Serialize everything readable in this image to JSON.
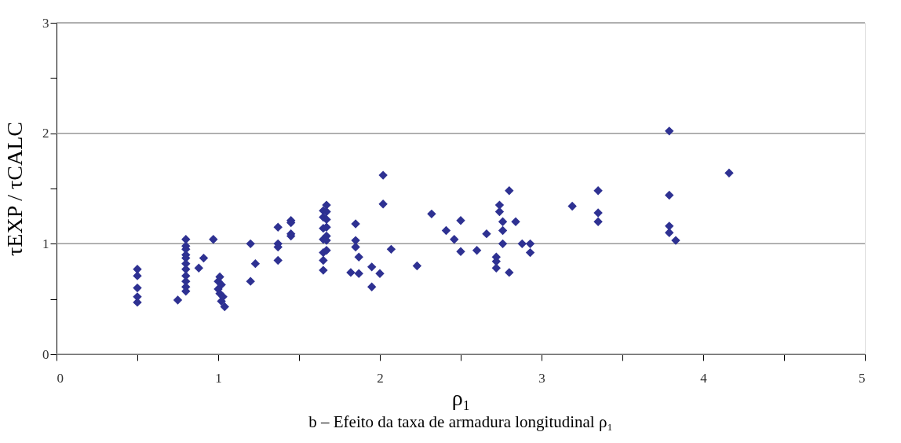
{
  "chart_data": {
    "type": "scatter",
    "title": "b – Efeito da taxa de armadura longitudinal ρ₁",
    "xlabel": "ρ₁",
    "ylabel": "τEXP / τCALC",
    "xlim": [
      0,
      5
    ],
    "ylim": [
      0,
      3
    ],
    "xticks": [
      0,
      {
        "value": 0.5,
        "label": null
      },
      1,
      {
        "value": 1.5,
        "label": null
      },
      2,
      {
        "value": 2.5,
        "label": null
      },
      3,
      {
        "value": 3.5,
        "label": null
      },
      4,
      {
        "value": 4.5,
        "label": null
      },
      5
    ],
    "yticks": [
      0,
      {
        "value": 0.5,
        "label": null
      },
      1,
      {
        "value": 1.5,
        "label": null
      },
      2,
      {
        "value": 2.5,
        "label": null
      },
      3
    ],
    "grid": "y",
    "marker": "diamond",
    "legend": false,
    "series": [
      {
        "color": "#2e3192",
        "x": [
          0.5,
          0.5,
          0.5,
          0.5,
          0.5,
          0.75,
          0.8,
          0.8,
          0.8,
          0.8,
          0.8,
          0.8,
          0.8,
          0.8,
          0.8,
          0.8,
          0.8,
          0.88,
          0.91,
          0.97,
          1.0,
          1.0,
          1.01,
          1.01,
          1.02,
          1.02,
          1.03,
          1.04,
          1.2,
          1.2,
          1.23,
          1.37,
          1.37,
          1.37,
          1.37,
          1.45,
          1.45,
          1.45,
          1.45,
          1.65,
          1.65,
          1.65,
          1.65,
          1.65,
          1.65,
          1.65,
          1.67,
          1.67,
          1.67,
          1.67,
          1.67,
          1.67,
          1.67,
          1.82,
          1.85,
          1.85,
          1.85,
          1.87,
          1.87,
          1.95,
          1.95,
          2.0,
          2.02,
          2.02,
          2.07,
          2.23,
          2.32,
          2.41,
          2.46,
          2.5,
          2.5,
          2.6,
          2.66,
          2.72,
          2.72,
          2.72,
          2.74,
          2.74,
          2.76,
          2.76,
          2.76,
          2.8,
          2.8,
          2.84,
          2.88,
          2.93,
          2.93,
          3.19,
          3.35,
          3.35,
          3.35,
          3.79,
          3.79,
          3.79,
          3.79,
          3.83,
          4.16
        ],
        "values": [
          0.77,
          0.71,
          0.6,
          0.52,
          0.47,
          0.49,
          1.04,
          0.98,
          0.95,
          0.9,
          0.87,
          0.82,
          0.77,
          0.71,
          0.66,
          0.61,
          0.57,
          0.78,
          0.87,
          1.04,
          0.66,
          0.59,
          0.7,
          0.55,
          0.63,
          0.48,
          0.52,
          0.43,
          1.0,
          0.66,
          0.82,
          1.15,
          1.0,
          0.97,
          0.85,
          1.21,
          1.19,
          1.09,
          1.07,
          1.3,
          1.24,
          1.14,
          1.04,
          0.92,
          0.85,
          0.76,
          1.35,
          1.29,
          1.22,
          1.15,
          1.07,
          1.03,
          0.94,
          0.74,
          1.18,
          1.03,
          0.97,
          0.88,
          0.73,
          0.79,
          0.61,
          0.73,
          1.62,
          1.36,
          0.95,
          0.8,
          1.27,
          1.12,
          1.04,
          1.21,
          0.93,
          0.94,
          1.09,
          0.88,
          0.84,
          0.78,
          1.29,
          1.35,
          1.2,
          1.12,
          1.0,
          1.48,
          0.74,
          1.2,
          1.0,
          1.0,
          0.92,
          1.34,
          1.48,
          1.28,
          1.2,
          2.02,
          1.44,
          1.16,
          1.1,
          1.03,
          1.64
        ]
      }
    ]
  }
}
